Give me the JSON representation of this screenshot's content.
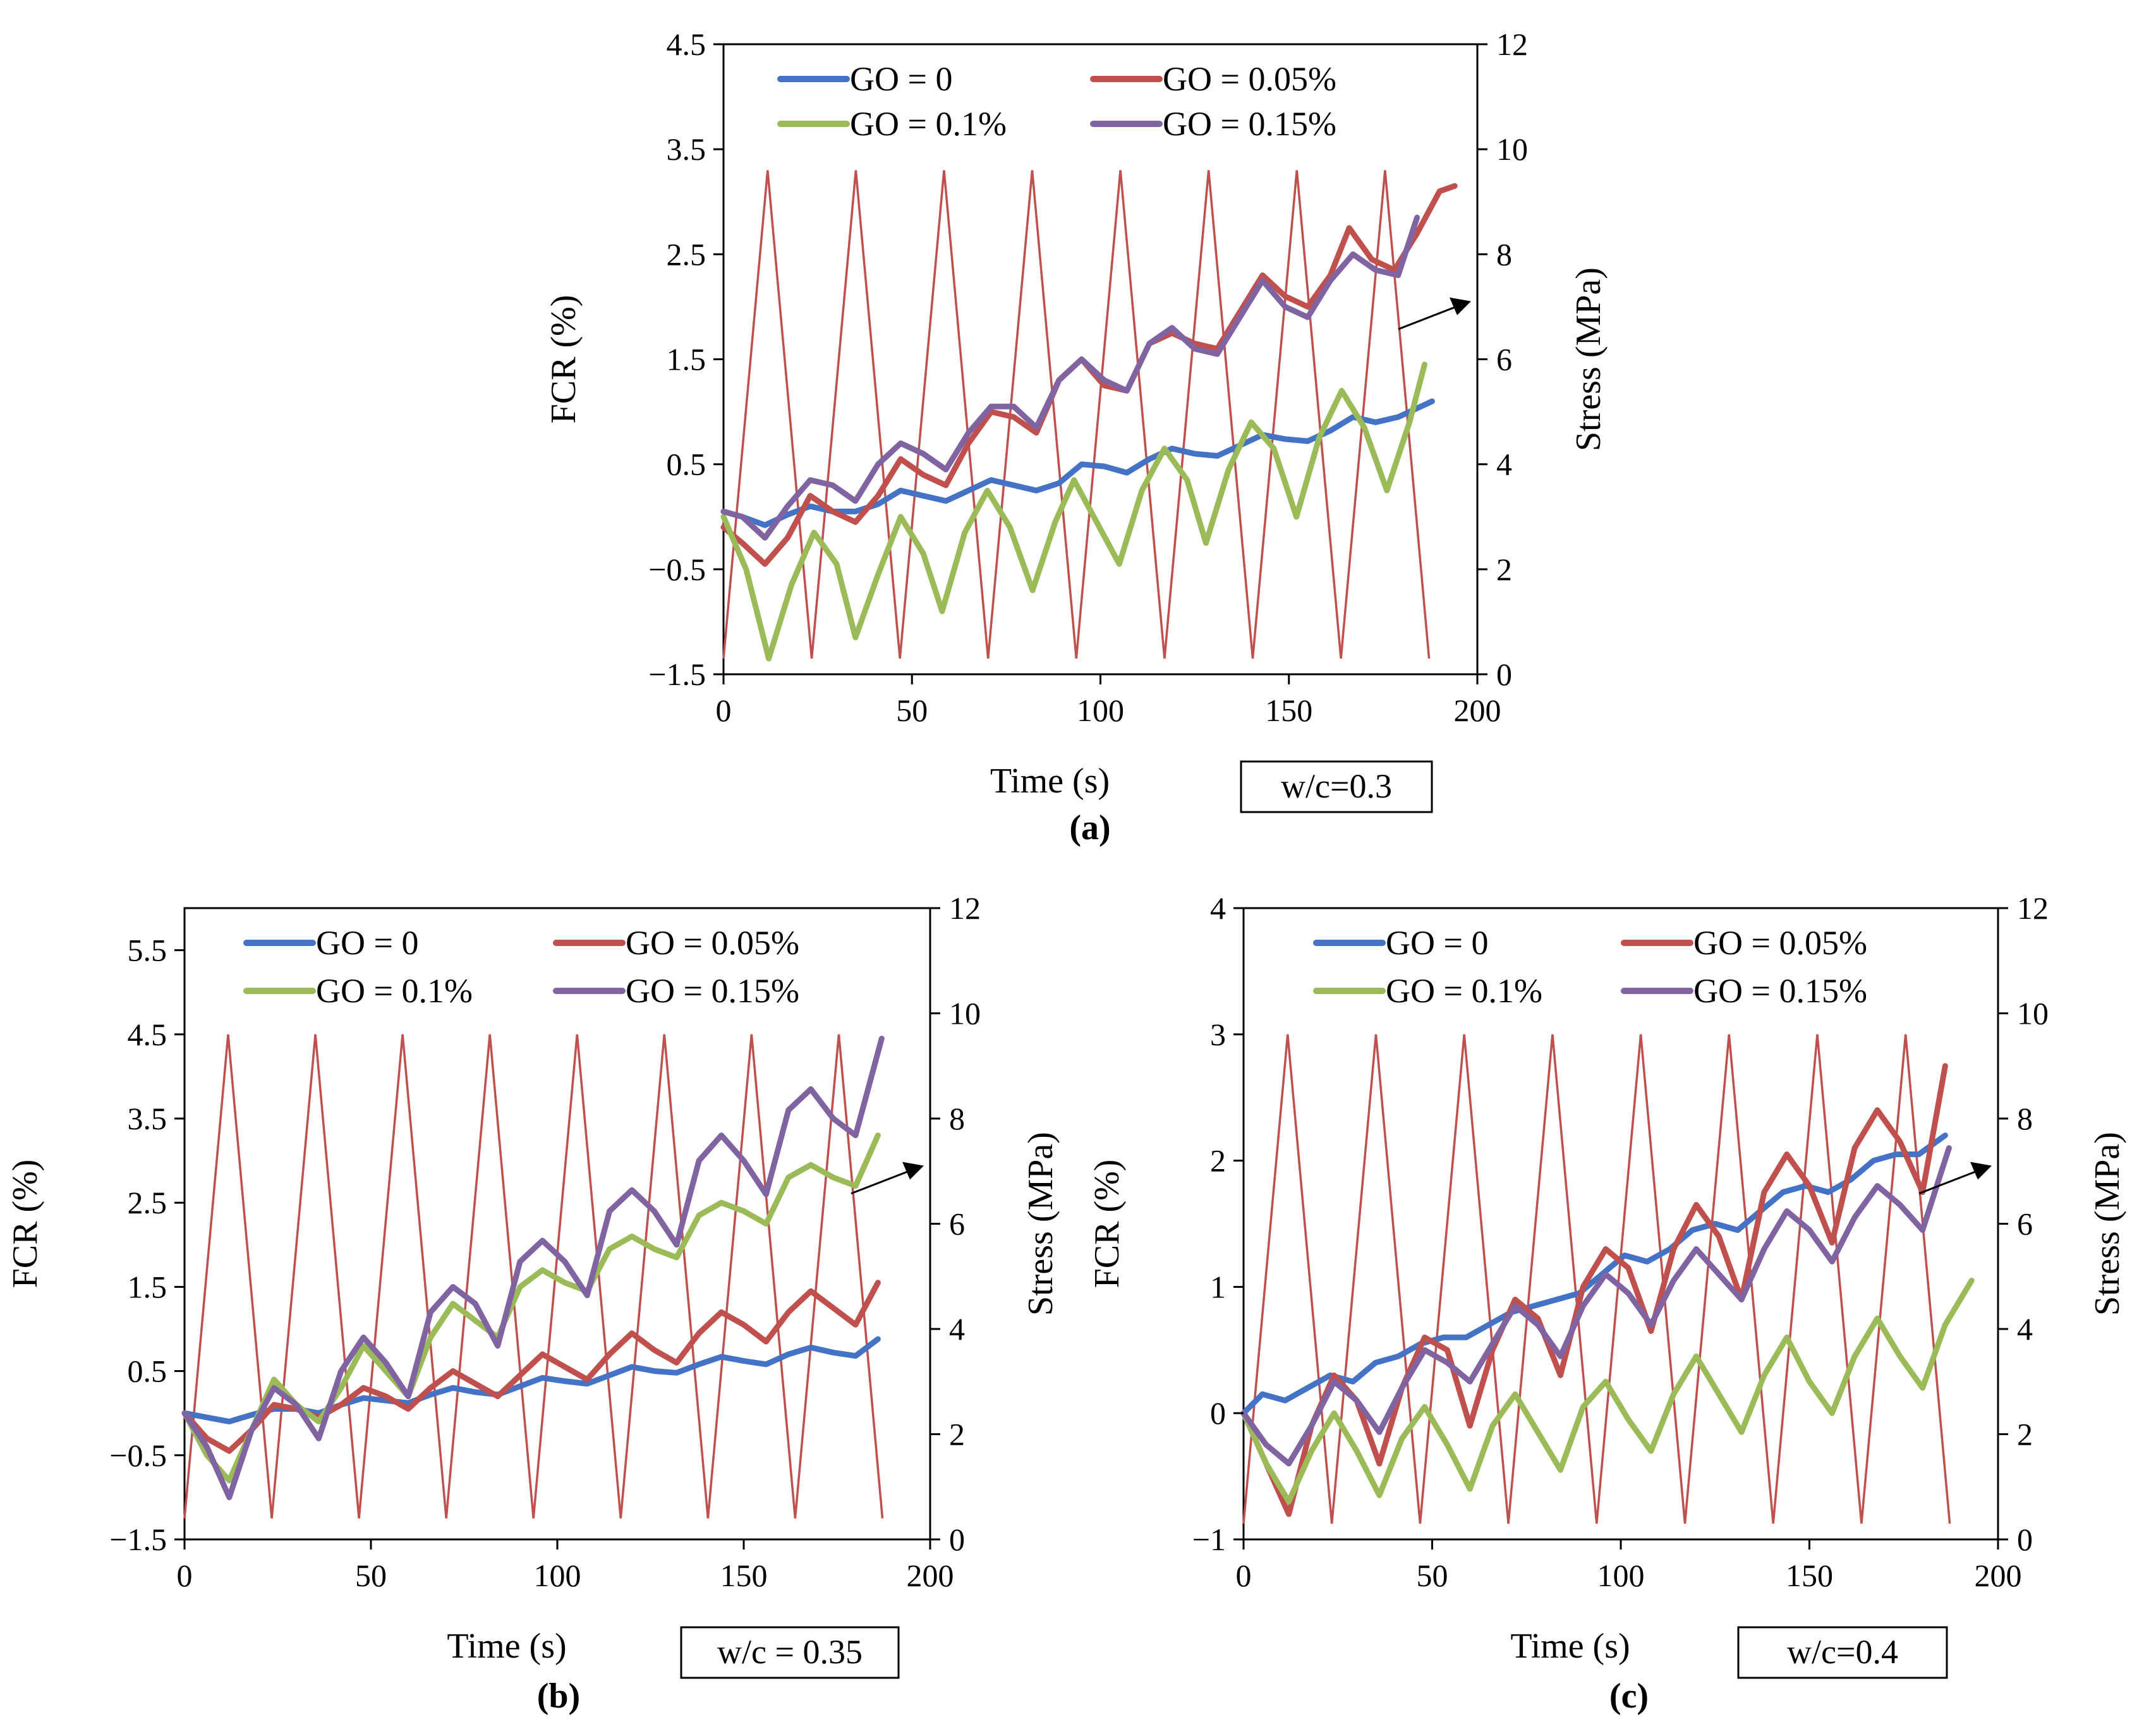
{
  "figure": {
    "description_labels": [
      "(a)",
      "(b)",
      "(c)"
    ]
  },
  "colors": {
    "go0": "#4472C4",
    "go005": "#C0504D",
    "go01": "#9BBB59",
    "go015": "#8064A2",
    "stress": "#C0504D",
    "axis": "#000000"
  },
  "chart_data": [
    {
      "type": "line",
      "panel": "(a)",
      "annotation": "w/c=0.3",
      "xlabel": "Time (s)",
      "ylabel": "FCR (%)",
      "y2label": "Stress (MPa)",
      "xlim": [
        0,
        200
      ],
      "ylim": [
        -1.5,
        4.5
      ],
      "y2lim": [
        0,
        12
      ],
      "xticks": [
        0,
        50,
        100,
        150,
        200
      ],
      "yticks": [
        -1.5,
        -0.5,
        0.5,
        1.5,
        2.5,
        3.5,
        4.5
      ],
      "yticklabels": [
        "−1.5",
        "−0.5",
        "0.5",
        "1.5",
        "2.5",
        "3.5",
        "4.5"
      ],
      "y2ticks": [
        0,
        2,
        4,
        6,
        8,
        10,
        12
      ],
      "stress": {
        "x": [
          0,
          11.7,
          23.4,
          35.1,
          46.8,
          58.5,
          70.2,
          81.9,
          93.6,
          105.3,
          117.0,
          128.7,
          140.4,
          152.1,
          163.8,
          175.5,
          187.2
        ],
        "y": [
          0.3,
          9.6,
          0.3,
          9.6,
          0.3,
          9.6,
          0.3,
          9.6,
          0.3,
          9.6,
          0.3,
          9.6,
          0.3,
          9.6,
          0.3,
          9.6,
          0.3
        ]
      },
      "series": [
        {
          "name": "GO = 0",
          "color": "#4472C4",
          "x": [
            0,
            5,
            11,
            17,
            23,
            29,
            35,
            41,
            47,
            53,
            59,
            65,
            71,
            77,
            83,
            89,
            95,
            101,
            107,
            113,
            119,
            125,
            131,
            137,
            143,
            149,
            155,
            161,
            167,
            173,
            179,
            188
          ],
          "y": [
            0.05,
            0.0,
            -0.08,
            0.02,
            0.1,
            0.05,
            0.05,
            0.12,
            0.25,
            0.2,
            0.15,
            0.25,
            0.35,
            0.3,
            0.25,
            0.32,
            0.5,
            0.48,
            0.42,
            0.55,
            0.65,
            0.6,
            0.58,
            0.68,
            0.78,
            0.74,
            0.72,
            0.82,
            0.95,
            0.9,
            0.95,
            1.1
          ]
        },
        {
          "name": "GO = 0.05%",
          "color": "#C0504D",
          "x": [
            0,
            5,
            11,
            17,
            23,
            29,
            35,
            41,
            47,
            53,
            59,
            65,
            71,
            77,
            83,
            89,
            95,
            101,
            107,
            113,
            119,
            125,
            131,
            137,
            143,
            149,
            155,
            161,
            166,
            172,
            178,
            184,
            190,
            194
          ],
          "y": [
            -0.1,
            -0.25,
            -0.45,
            -0.2,
            0.2,
            0.05,
            -0.05,
            0.2,
            0.55,
            0.4,
            0.3,
            0.7,
            1.0,
            0.95,
            0.8,
            1.3,
            1.5,
            1.25,
            1.2,
            1.65,
            1.75,
            1.65,
            1.6,
            1.95,
            2.3,
            2.1,
            2.0,
            2.3,
            2.75,
            2.45,
            2.35,
            2.7,
            3.1,
            3.15
          ]
        },
        {
          "name": "GO = 0.1%",
          "color": "#9BBB59",
          "x": [
            0,
            6,
            12,
            18,
            24,
            30,
            35,
            41,
            47,
            53,
            58,
            64,
            70,
            76,
            82,
            88,
            93,
            99,
            105,
            111,
            117,
            123,
            128,
            134,
            140,
            146,
            152,
            158,
            164,
            170,
            176,
            182,
            186
          ],
          "y": [
            0.0,
            -0.5,
            -1.35,
            -0.65,
            -0.15,
            -0.45,
            -1.15,
            -0.55,
            0.0,
            -0.35,
            -0.9,
            -0.15,
            0.25,
            -0.1,
            -0.7,
            -0.05,
            0.35,
            -0.05,
            -0.45,
            0.25,
            0.65,
            0.35,
            -0.25,
            0.45,
            0.9,
            0.65,
            0.0,
            0.75,
            1.2,
            0.85,
            0.25,
            0.9,
            1.45
          ]
        },
        {
          "name": "GO = 0.15%",
          "color": "#8064A2",
          "x": [
            0,
            5,
            11,
            17,
            23,
            29,
            35,
            41,
            47,
            53,
            59,
            65,
            71,
            77,
            83,
            89,
            95,
            101,
            107,
            113,
            119,
            125,
            131,
            137,
            143,
            149,
            155,
            161,
            167,
            173,
            179,
            184
          ],
          "y": [
            0.05,
            0.0,
            -0.2,
            0.1,
            0.35,
            0.3,
            0.15,
            0.5,
            0.7,
            0.6,
            0.45,
            0.8,
            1.05,
            1.05,
            0.85,
            1.3,
            1.5,
            1.3,
            1.2,
            1.65,
            1.8,
            1.6,
            1.55,
            1.9,
            2.25,
            2.0,
            1.9,
            2.25,
            2.5,
            2.35,
            2.3,
            2.85
          ]
        }
      ]
    },
    {
      "type": "line",
      "panel": "(b)",
      "annotation": "w/c = 0.35",
      "xlabel": "Time (s)",
      "ylabel": "FCR (%)",
      "y2label": "Stress (MPa)",
      "xlim": [
        0,
        200
      ],
      "ylim": [
        -1.5,
        6.0
      ],
      "y2lim": [
        0,
        12
      ],
      "xticks": [
        0,
        50,
        100,
        150,
        200
      ],
      "yticks": [
        -1.5,
        -0.5,
        0.5,
        1.5,
        2.5,
        3.5,
        4.5,
        5.5
      ],
      "yticklabels": [
        "−1.5",
        "−0.5",
        "0.5",
        "1.5",
        "2.5",
        "3.5",
        "4.5",
        "5.5"
      ],
      "y2ticks": [
        0,
        2,
        4,
        6,
        8,
        10,
        12
      ],
      "stress": {
        "x": [
          0,
          11.7,
          23.4,
          35.1,
          46.8,
          58.5,
          70.2,
          81.9,
          93.6,
          105.3,
          117.0,
          128.7,
          140.4,
          152.1,
          163.8,
          175.5,
          187.2
        ],
        "y": [
          0.4,
          9.6,
          0.4,
          9.6,
          0.4,
          9.6,
          0.4,
          9.6,
          0.4,
          9.6,
          0.4,
          9.6,
          0.4,
          9.6,
          0.4,
          9.6,
          0.4
        ]
      },
      "series": [
        {
          "name": "GO = 0",
          "color": "#4472C4",
          "x": [
            0,
            6,
            12,
            18,
            24,
            30,
            36,
            42,
            48,
            54,
            60,
            66,
            72,
            78,
            84,
            90,
            96,
            102,
            108,
            114,
            120,
            126,
            132,
            138,
            144,
            150,
            156,
            162,
            168,
            174,
            180,
            186
          ],
          "y": [
            0.0,
            -0.05,
            -0.1,
            -0.02,
            0.05,
            0.05,
            0.0,
            0.1,
            0.18,
            0.15,
            0.12,
            0.22,
            0.3,
            0.25,
            0.22,
            0.32,
            0.42,
            0.38,
            0.35,
            0.45,
            0.55,
            0.5,
            0.48,
            0.58,
            0.67,
            0.62,
            0.58,
            0.7,
            0.78,
            0.72,
            0.68,
            0.88
          ]
        },
        {
          "name": "GO = 0.05%",
          "color": "#C0504D",
          "x": [
            0,
            6,
            12,
            18,
            24,
            30,
            36,
            42,
            48,
            54,
            60,
            66,
            72,
            78,
            84,
            90,
            96,
            102,
            108,
            114,
            120,
            126,
            132,
            138,
            144,
            150,
            156,
            162,
            168,
            174,
            180,
            186
          ],
          "y": [
            0.0,
            -0.3,
            -0.45,
            -0.2,
            0.1,
            0.05,
            -0.05,
            0.1,
            0.3,
            0.2,
            0.05,
            0.3,
            0.5,
            0.35,
            0.2,
            0.45,
            0.7,
            0.55,
            0.4,
            0.7,
            0.95,
            0.75,
            0.6,
            0.95,
            1.2,
            1.05,
            0.85,
            1.2,
            1.45,
            1.25,
            1.05,
            1.55
          ]
        },
        {
          "name": "GO = 0.1%",
          "color": "#9BBB59",
          "x": [
            0,
            6,
            12,
            18,
            24,
            30,
            36,
            42,
            48,
            54,
            60,
            66,
            72,
            78,
            84,
            90,
            96,
            102,
            108,
            114,
            120,
            126,
            132,
            138,
            144,
            150,
            156,
            162,
            168,
            174,
            180,
            186
          ],
          "y": [
            0.0,
            -0.5,
            -0.8,
            -0.2,
            0.4,
            0.1,
            -0.1,
            0.3,
            0.8,
            0.5,
            0.2,
            0.9,
            1.3,
            1.1,
            0.9,
            1.5,
            1.7,
            1.55,
            1.45,
            1.95,
            2.1,
            1.95,
            1.85,
            2.35,
            2.5,
            2.4,
            2.25,
            2.8,
            2.95,
            2.8,
            2.7,
            3.3
          ]
        },
        {
          "name": "GO = 0.15%",
          "color": "#8064A2",
          "x": [
            0,
            6,
            12,
            18,
            24,
            30,
            36,
            42,
            48,
            54,
            60,
            66,
            72,
            78,
            84,
            90,
            96,
            102,
            108,
            114,
            120,
            126,
            132,
            138,
            144,
            150,
            156,
            162,
            168,
            174,
            180,
            187
          ],
          "y": [
            0.0,
            -0.4,
            -1.0,
            -0.2,
            0.3,
            0.1,
            -0.3,
            0.5,
            0.9,
            0.6,
            0.2,
            1.2,
            1.5,
            1.3,
            0.8,
            1.8,
            2.05,
            1.8,
            1.4,
            2.4,
            2.65,
            2.4,
            2.0,
            3.0,
            3.3,
            3.0,
            2.6,
            3.6,
            3.85,
            3.5,
            3.3,
            4.45
          ]
        }
      ]
    },
    {
      "type": "line",
      "panel": "(c)",
      "annotation": "w/c=0.4",
      "xlabel": "Time (s)",
      "ylabel": "FCR (%)",
      "y2label": "Stress (MPa)",
      "xlim": [
        0,
        200
      ],
      "ylim": [
        -1,
        4
      ],
      "y2lim": [
        0,
        12
      ],
      "xticks": [
        0,
        50,
        100,
        150,
        200
      ],
      "yticks": [
        -1,
        0,
        1,
        2,
        3,
        4
      ],
      "yticklabels": [
        "−1",
        "0",
        "1",
        "2",
        "3",
        "4"
      ],
      "y2ticks": [
        0,
        2,
        4,
        6,
        8,
        10,
        12
      ],
      "stress": {
        "x": [
          0,
          11.7,
          23.4,
          35.1,
          46.8,
          58.5,
          70.2,
          81.9,
          93.6,
          105.3,
          117.0,
          128.7,
          140.4,
          152.1,
          163.8,
          175.5,
          187.2
        ],
        "y": [
          0.3,
          9.6,
          0.3,
          9.6,
          0.3,
          9.6,
          0.3,
          9.6,
          0.3,
          9.6,
          0.3,
          9.6,
          0.3,
          9.6,
          0.3,
          9.6,
          0.3
        ]
      },
      "series": [
        {
          "name": "GO = 0",
          "color": "#4472C4",
          "x": [
            0,
            5,
            11,
            17,
            23,
            29,
            35,
            41,
            47,
            53,
            59,
            65,
            71,
            77,
            83,
            89,
            95,
            101,
            107,
            113,
            119,
            125,
            131,
            137,
            143,
            149,
            155,
            161,
            167,
            173,
            179,
            186
          ],
          "y": [
            0.0,
            0.15,
            0.1,
            0.2,
            0.3,
            0.25,
            0.4,
            0.45,
            0.55,
            0.6,
            0.6,
            0.7,
            0.8,
            0.85,
            0.9,
            0.95,
            1.1,
            1.25,
            1.2,
            1.3,
            1.45,
            1.5,
            1.45,
            1.6,
            1.75,
            1.8,
            1.75,
            1.85,
            2.0,
            2.05,
            2.05,
            2.2
          ]
        },
        {
          "name": "GO = 0.05%",
          "color": "#C0504D",
          "x": [
            0,
            6,
            12,
            18,
            24,
            30,
            36,
            42,
            48,
            54,
            60,
            66,
            72,
            78,
            84,
            90,
            96,
            102,
            108,
            114,
            120,
            126,
            132,
            138,
            144,
            150,
            156,
            162,
            168,
            174,
            180,
            186
          ],
          "y": [
            0.0,
            -0.4,
            -0.8,
            -0.1,
            0.3,
            0.1,
            -0.4,
            0.2,
            0.6,
            0.5,
            -0.1,
            0.5,
            0.9,
            0.75,
            0.3,
            1.0,
            1.3,
            1.15,
            0.65,
            1.3,
            1.65,
            1.4,
            0.9,
            1.75,
            2.05,
            1.8,
            1.35,
            2.1,
            2.4,
            2.15,
            1.75,
            2.75
          ]
        },
        {
          "name": "GO = 0.1%",
          "color": "#9BBB59",
          "x": [
            0,
            6,
            12,
            18,
            24,
            30,
            36,
            42,
            48,
            54,
            60,
            66,
            72,
            78,
            84,
            90,
            96,
            102,
            108,
            114,
            120,
            126,
            132,
            138,
            144,
            150,
            156,
            162,
            168,
            174,
            180,
            186,
            193
          ],
          "y": [
            0.0,
            -0.4,
            -0.7,
            -0.3,
            0.0,
            -0.3,
            -0.65,
            -0.2,
            0.05,
            -0.25,
            -0.6,
            -0.1,
            0.15,
            -0.15,
            -0.45,
            0.05,
            0.25,
            -0.05,
            -0.3,
            0.15,
            0.45,
            0.15,
            -0.15,
            0.3,
            0.6,
            0.25,
            0.0,
            0.45,
            0.75,
            0.45,
            0.2,
            0.7,
            1.05
          ]
        },
        {
          "name": "GO = 0.15%",
          "color": "#8064A2",
          "x": [
            0,
            6,
            12,
            18,
            24,
            30,
            36,
            42,
            48,
            54,
            60,
            66,
            72,
            78,
            84,
            90,
            96,
            102,
            108,
            114,
            120,
            126,
            132,
            138,
            144,
            150,
            156,
            162,
            168,
            174,
            180,
            187
          ],
          "y": [
            0.0,
            -0.25,
            -0.4,
            -0.1,
            0.25,
            0.1,
            -0.15,
            0.2,
            0.5,
            0.4,
            0.25,
            0.55,
            0.85,
            0.7,
            0.45,
            0.85,
            1.1,
            0.95,
            0.7,
            1.05,
            1.3,
            1.1,
            0.9,
            1.3,
            1.6,
            1.45,
            1.2,
            1.55,
            1.8,
            1.65,
            1.45,
            2.1
          ]
        }
      ]
    }
  ]
}
